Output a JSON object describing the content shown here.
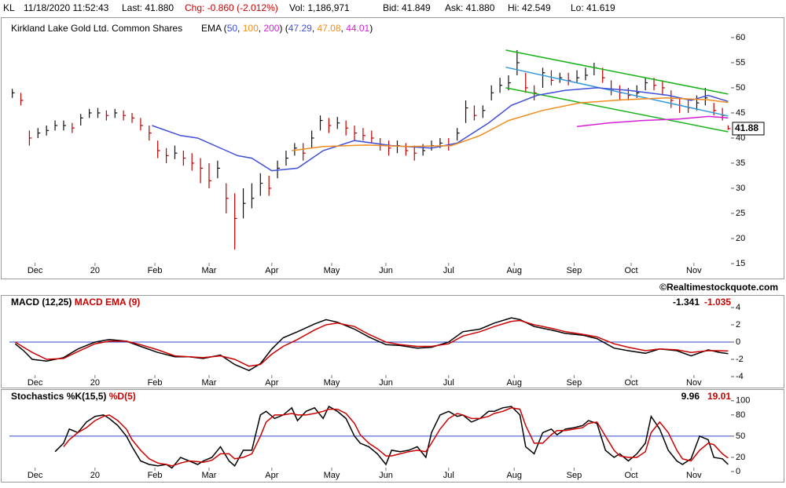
{
  "header": {
    "symbol": "KL",
    "timestamp": "11/18/2020 11:52:43",
    "last": "Last: 41.880",
    "change": "Chg: -0.860 (-2.012%)",
    "volume": "Vol: 1,186,971",
    "bid": "Bid: 41.849",
    "ask": "Ask: 41.880",
    "high": "Hi: 42.549",
    "low": "Lo: 41.619"
  },
  "watermark": "©Realtimestockquote.com",
  "chart_data": [
    {
      "type": "ohlc",
      "title": "Kirkland Lake Gold Ltd. Common Shares",
      "up_color": "#111111",
      "down_color": "#c00000",
      "x": [
        1,
        4,
        7,
        10,
        13,
        16,
        19,
        22,
        25,
        28,
        31,
        34,
        37,
        40,
        43,
        46,
        49,
        52,
        55,
        58,
        61,
        64,
        67,
        70,
        73,
        76,
        79,
        82,
        85,
        88,
        91,
        94,
        97,
        100,
        103,
        106,
        109,
        112,
        115,
        118,
        121,
        124,
        127,
        130,
        133,
        136,
        139,
        142,
        145,
        148,
        151,
        154,
        157,
        160,
        163,
        166,
        169,
        172,
        175,
        178,
        181,
        184,
        187,
        190,
        193,
        196,
        199,
        202,
        205,
        208,
        211,
        214,
        217,
        220,
        223,
        226,
        229,
        232,
        235,
        238,
        241,
        244,
        247,
        250,
        252
      ],
      "high": [
        49.8,
        49,
        41.5,
        42,
        42.5,
        43.5,
        43.5,
        43,
        44.8,
        45.8,
        46,
        45.5,
        45.8,
        45.5,
        45,
        44,
        42.5,
        39.5,
        38,
        38.5,
        37.5,
        37,
        36,
        35,
        35.5,
        31,
        29,
        30,
        31,
        33,
        32.5,
        35.5,
        37.5,
        39,
        39,
        41.5,
        44.5,
        44,
        44.2,
        43.5,
        42.5,
        42,
        41.5,
        40,
        39.5,
        39.5,
        39,
        38.5,
        38.8,
        39.5,
        40,
        40,
        42,
        47.5,
        46.5,
        46.5,
        50.5,
        52,
        52.5,
        57.5,
        53,
        50.5,
        54,
        53.5,
        53,
        53,
        53.5,
        54,
        55,
        54,
        51.5,
        50.5,
        50,
        50.5,
        52,
        52,
        51.5,
        49.5,
        48,
        47.5,
        48.5,
        50,
        47,
        46,
        42.55
      ],
      "low": [
        48,
        46.5,
        38.5,
        40,
        40.5,
        41.5,
        41.5,
        41,
        42.5,
        44,
        44,
        43.5,
        44,
        43.5,
        43,
        41.5,
        39.5,
        36,
        35,
        35.8,
        34.5,
        33.5,
        31,
        30,
        32,
        25,
        17.8,
        24,
        26,
        28.5,
        28.5,
        32,
        34.5,
        36.5,
        35.5,
        38,
        41.5,
        41,
        41.8,
        40.5,
        39.5,
        39.5,
        39,
        37.5,
        36.5,
        37,
        36.5,
        35.5,
        36.5,
        37.5,
        38,
        37.5,
        39.5,
        43,
        43.5,
        44,
        47.5,
        49,
        49.5,
        52.5,
        49,
        47.5,
        50,
        50.5,
        51,
        50.5,
        51,
        51.5,
        52.5,
        51,
        48.5,
        47.5,
        47.5,
        48,
        49.5,
        49.5,
        48.5,
        46,
        45,
        45,
        45.5,
        46.5,
        44.5,
        43.5,
        41.62
      ],
      "close": [
        49,
        47.5,
        40,
        41,
        41.5,
        42.5,
        42.5,
        42,
        44,
        45,
        45,
        44.5,
        45,
        44.5,
        44,
        42.5,
        41,
        37.5,
        36.5,
        37,
        36,
        35,
        34,
        31.5,
        34,
        28,
        24,
        27,
        28,
        31,
        30,
        34,
        36,
        38,
        37,
        40,
        43.5,
        42.5,
        43,
        42,
        41,
        40.5,
        40,
        38.5,
        38,
        38.5,
        37.5,
        37,
        37.5,
        38.5,
        39,
        38.5,
        41,
        46,
        44.5,
        45.5,
        49,
        50.5,
        51,
        55,
        50,
        49,
        53,
        51.5,
        52,
        51.5,
        52,
        52.5,
        54,
        52,
        49.5,
        49,
        48.5,
        49,
        51,
        50.5,
        50,
        47.5,
        46.5,
        46,
        47,
        48,
        45.5,
        44.5,
        41.88
      ],
      "last_label": {
        "value": 41.88,
        "label": "41.88"
      },
      "overlay_label": "EMA",
      "series": [
        {
          "name": "50",
          "color": "#3f4fd9",
          "legend_value": "47.29",
          "x": [
            50,
            60,
            66,
            76,
            80,
            85,
            92,
            101,
            110,
            121,
            134,
            148,
            157,
            168,
            176,
            185,
            195,
            206,
            217,
            231,
            239,
            245,
            252
          ],
          "values": [
            42.5,
            40.5,
            40,
            37.5,
            36.5,
            36,
            33.5,
            34,
            37.5,
            39.5,
            38.5,
            38,
            39,
            43,
            46.5,
            48.5,
            49.5,
            50,
            49.5,
            48.5,
            47.5,
            48.5,
            47.29
          ]
        },
        {
          "name": "100",
          "color": "#f08c1e",
          "legend_value": "47.08",
          "x": [
            99,
            110,
            125,
            140,
            155,
            165,
            175,
            187,
            200,
            215,
            230,
            245,
            252
          ],
          "values": [
            37.5,
            38.3,
            38.6,
            38.3,
            38.5,
            40.5,
            43.5,
            45.5,
            47,
            47.6,
            48,
            47.6,
            47.08
          ]
        },
        {
          "name": "200",
          "color": "#d41fd4",
          "legend_value": "44.01",
          "x": [
            199,
            210,
            222,
            235,
            245,
            252
          ],
          "values": [
            42.3,
            43,
            43.5,
            43.8,
            44.3,
            44.01
          ]
        }
      ],
      "trendlines": [
        {
          "color": "#19b219",
          "x": [
            174,
            252
          ],
          "values": [
            57.5,
            48.75
          ]
        },
        {
          "color": "#3399dd",
          "x": [
            174,
            252
          ],
          "values": [
            54.1,
            44.4
          ]
        },
        {
          "color": "#19b219",
          "x": [
            174,
            252
          ],
          "values": [
            50,
            41.25
          ]
        }
      ],
      "xlim": [
        0,
        253
      ],
      "xticks": [
        {
          "value": 9,
          "label": "Dec"
        },
        {
          "value": 30,
          "label": "20"
        },
        {
          "value": 51,
          "label": "Feb"
        },
        {
          "value": 70,
          "label": "Mar"
        },
        {
          "value": 92,
          "label": "Apr"
        },
        {
          "value": 113,
          "label": "May"
        },
        {
          "value": 132,
          "label": "Jun"
        },
        {
          "value": 154,
          "label": "Jul"
        },
        {
          "value": 177,
          "label": "Aug"
        },
        {
          "value": 198,
          "label": "Sep"
        },
        {
          "value": 218,
          "label": "Oct"
        },
        {
          "value": 240,
          "label": "Nov"
        }
      ],
      "ylim": [
        12.5,
        62.8
      ],
      "yticks": [
        15,
        20,
        25,
        30,
        35,
        40,
        45,
        50,
        55,
        60
      ]
    },
    {
      "type": "line",
      "x": [
        2,
        5,
        8,
        13,
        19,
        24,
        30,
        35,
        41,
        46,
        52,
        58,
        63,
        68,
        74,
        79,
        84,
        88,
        92,
        96,
        101,
        107,
        111,
        115,
        121,
        126,
        132,
        137,
        143,
        148,
        154,
        159,
        165,
        170,
        176,
        179,
        184,
        190,
        195,
        201,
        206,
        212,
        217,
        223,
        228,
        234,
        239,
        245,
        249,
        252
      ],
      "series": [
        {
          "name": "MACD (12,25)",
          "color": "#000000",
          "last_label": "-1.341",
          "values": [
            -0.2,
            -1,
            -2,
            -2.2,
            -1.8,
            -0.8,
            0,
            0.3,
            0.1,
            -0.5,
            -1.2,
            -1.7,
            -1.7,
            -1.9,
            -1.5,
            -2.6,
            -3.3,
            -2.5,
            -0.8,
            0.5,
            1.2,
            2.1,
            2.6,
            2.3,
            1.5,
            0.6,
            -0.3,
            -0.4,
            -0.7,
            -0.6,
            0,
            1.2,
            1.5,
            2.2,
            2.8,
            2.6,
            1.8,
            1.4,
            1.0,
            0.8,
            0.4,
            -0.7,
            -1.0,
            -1.3,
            -0.8,
            -1.0,
            -1.6,
            -0.9,
            -1.2,
            -1.341
          ]
        },
        {
          "name": "MACD EMA (9)",
          "color": "#cc0000",
          "last_label": "-1.035",
          "values": [
            0,
            -0.6,
            -1.2,
            -2,
            -1.9,
            -1.1,
            -0.2,
            0.1,
            0.1,
            -0.3,
            -0.9,
            -1.6,
            -1.7,
            -1.8,
            -1.6,
            -2.0,
            -2.8,
            -2.6,
            -1.4,
            -0.5,
            0.3,
            1.4,
            2.0,
            2.2,
            1.8,
            0.9,
            0,
            -0.3,
            -0.5,
            -0.5,
            -0.2,
            0.7,
            1.2,
            1.8,
            2.4,
            2.5,
            2.0,
            1.6,
            1.2,
            0.9,
            0.6,
            -0.2,
            -0.6,
            -1.0,
            -0.8,
            -0.9,
            -1.2,
            -1.0,
            -1.0,
            -1.035
          ]
        }
      ],
      "reference_line": 0,
      "reference_color": "#3344cc",
      "xlim": [
        0,
        253
      ],
      "xticks": [
        {
          "value": 9,
          "label": "Dec"
        },
        {
          "value": 30,
          "label": "20"
        },
        {
          "value": 51,
          "label": "Feb"
        },
        {
          "value": 70,
          "label": "Mar"
        },
        {
          "value": 92,
          "label": "Apr"
        },
        {
          "value": 113,
          "label": "May"
        },
        {
          "value": 132,
          "label": "Jun"
        },
        {
          "value": 154,
          "label": "Jul"
        },
        {
          "value": 177,
          "label": "Aug"
        },
        {
          "value": 198,
          "label": "Sep"
        },
        {
          "value": 218,
          "label": "Oct"
        },
        {
          "value": 240,
          "label": "Nov"
        }
      ],
      "ylim": [
        -5.09,
        5.09
      ],
      "yticks": [
        -4,
        -2,
        0,
        2,
        4
      ]
    },
    {
      "type": "line",
      "x": [
        16,
        19,
        21,
        24,
        27,
        30,
        33,
        35,
        38,
        41,
        43,
        46,
        49,
        52,
        55,
        57,
        60,
        63,
        66,
        68,
        71,
        74,
        77,
        79,
        82,
        85,
        88,
        90,
        93,
        96,
        99,
        101,
        104,
        107,
        110,
        112,
        115,
        118,
        121,
        123,
        126,
        129,
        132,
        134,
        137,
        140,
        143,
        146,
        148,
        151,
        154,
        157,
        159,
        162,
        165,
        168,
        170,
        173,
        176,
        179,
        181,
        184,
        187,
        190,
        192,
        195,
        198,
        201,
        203,
        206,
        209,
        212,
        214,
        217,
        220,
        223,
        225,
        228,
        231,
        234,
        236,
        239,
        242,
        245,
        247,
        250,
        252
      ],
      "series": [
        {
          "name": "Stochastics %K(15,5)",
          "color": "#000000",
          "last_label": "9.96",
          "values": [
            28,
            40,
            60,
            55,
            70,
            78,
            80,
            75,
            65,
            50,
            35,
            15,
            10,
            8,
            10,
            5,
            20,
            15,
            10,
            15,
            20,
            35,
            15,
            8,
            30,
            30,
            80,
            85,
            75,
            80,
            90,
            72,
            85,
            90,
            75,
            92,
            85,
            75,
            50,
            40,
            35,
            25,
            10,
            30,
            28,
            30,
            35,
            20,
            55,
            80,
            85,
            78,
            80,
            70,
            75,
            85,
            85,
            90,
            92,
            80,
            35,
            25,
            55,
            60,
            52,
            60,
            62,
            65,
            72,
            68,
            30,
            20,
            25,
            15,
            25,
            40,
            78,
            60,
            30,
            15,
            10,
            18,
            50,
            45,
            20,
            18,
            9.96
          ]
        },
        {
          "name": "%D(5)",
          "color": "#cc0000",
          "last_label": "19.01",
          "values": [
            null,
            35,
            45,
            55,
            62,
            72,
            78,
            80,
            72,
            60,
            45,
            30,
            18,
            12,
            10,
            8,
            12,
            15,
            14,
            13,
            16,
            25,
            25,
            18,
            20,
            25,
            50,
            70,
            80,
            80,
            82,
            80,
            80,
            82,
            85,
            88,
            88,
            82,
            68,
            52,
            40,
            32,
            22,
            22,
            25,
            28,
            30,
            28,
            40,
            60,
            75,
            82,
            80,
            75,
            75,
            78,
            82,
            85,
            90,
            88,
            65,
            40,
            40,
            52,
            58,
            58,
            60,
            62,
            68,
            70,
            50,
            30,
            22,
            20,
            20,
            28,
            55,
            70,
            55,
            30,
            18,
            15,
            30,
            40,
            38,
            25,
            19.01
          ]
        }
      ],
      "reference_line": 50,
      "reference_color": "#3344cc",
      "xlim": [
        0,
        253
      ],
      "xticks": [
        {
          "value": 9,
          "label": "Dec"
        },
        {
          "value": 30,
          "label": "20"
        },
        {
          "value": 51,
          "label": "Feb"
        },
        {
          "value": 70,
          "label": "Mar"
        },
        {
          "value": 92,
          "label": "Apr"
        },
        {
          "value": 113,
          "label": "May"
        },
        {
          "value": 132,
          "label": "Jun"
        },
        {
          "value": 154,
          "label": "Jul"
        },
        {
          "value": 177,
          "label": "Aug"
        },
        {
          "value": 198,
          "label": "Sep"
        },
        {
          "value": 218,
          "label": "Oct"
        },
        {
          "value": 240,
          "label": "Nov"
        }
      ],
      "ylim": [
        -10,
        112
      ],
      "yticks": [
        0,
        20,
        50,
        80,
        100
      ]
    }
  ]
}
